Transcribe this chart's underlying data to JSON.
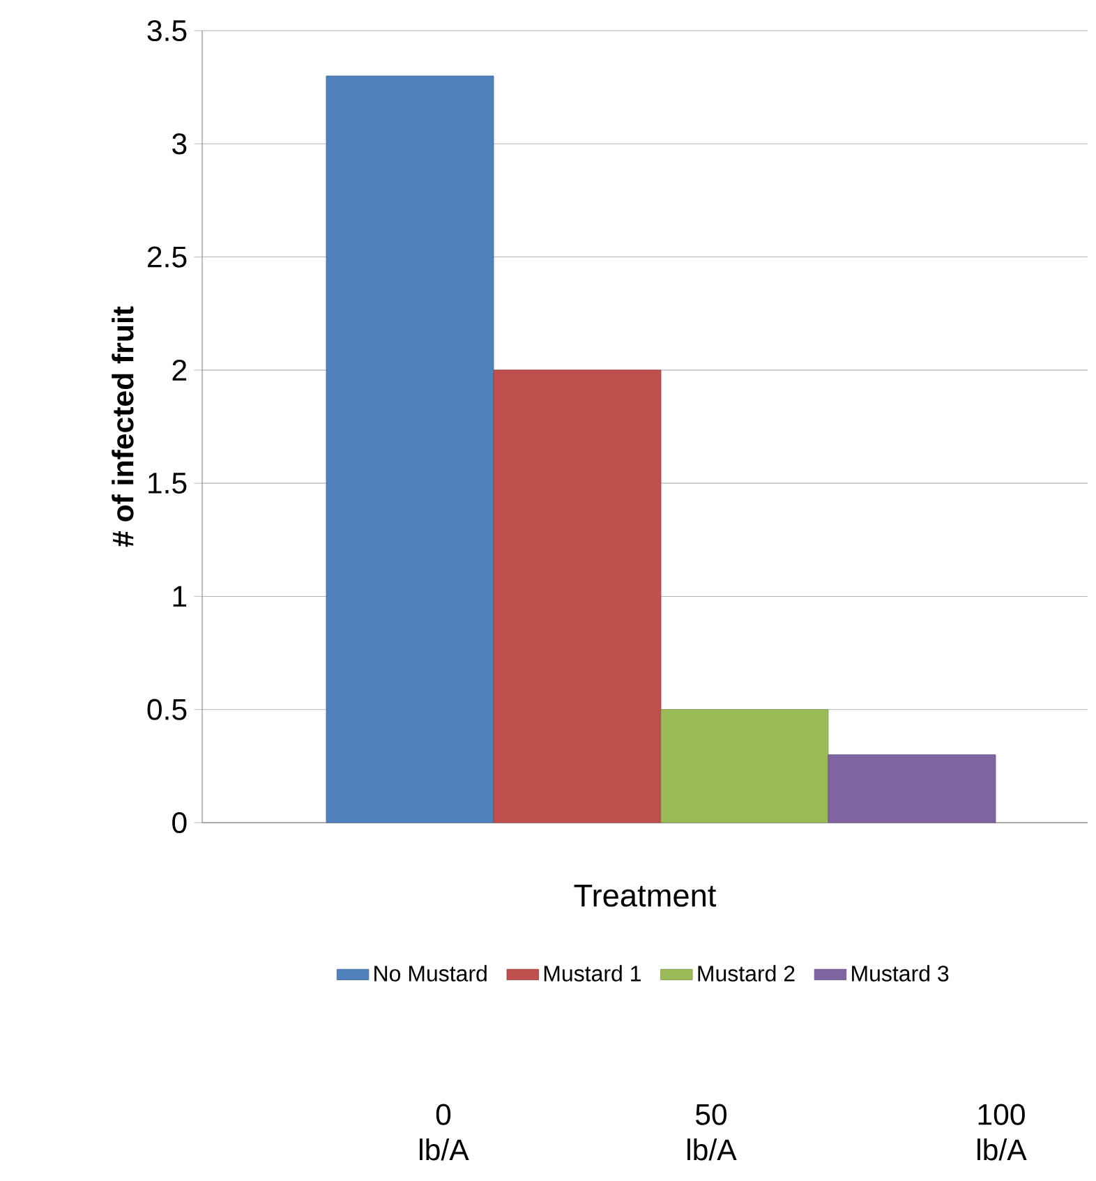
{
  "chart_data": {
    "type": "bar",
    "xlabel": "Treatment",
    "ylabel": "# of infected fruit",
    "categories": [
      null
    ],
    "series": [
      {
        "name": "No Mustard",
        "color": "#4f81bd",
        "values": [
          3.3
        ]
      },
      {
        "name": "Mustard 1",
        "color": "#c0504d",
        "values": [
          2
        ]
      },
      {
        "name": "Mustard 2",
        "color": "#9bbb59",
        "values": [
          0.5
        ]
      },
      {
        "name": "Mustard 3",
        "color": "#8064a2",
        "values": [
          0.3
        ]
      }
    ],
    "ylim": [
      0,
      3.5
    ],
    "yticks": [
      0,
      0.5,
      1,
      1.5,
      2,
      2.5,
      3,
      3.5
    ],
    "grid": "y",
    "legend": "bottom",
    "annotations": [
      "0 lb/A",
      "50 lb/A",
      "100 lb/A"
    ]
  }
}
